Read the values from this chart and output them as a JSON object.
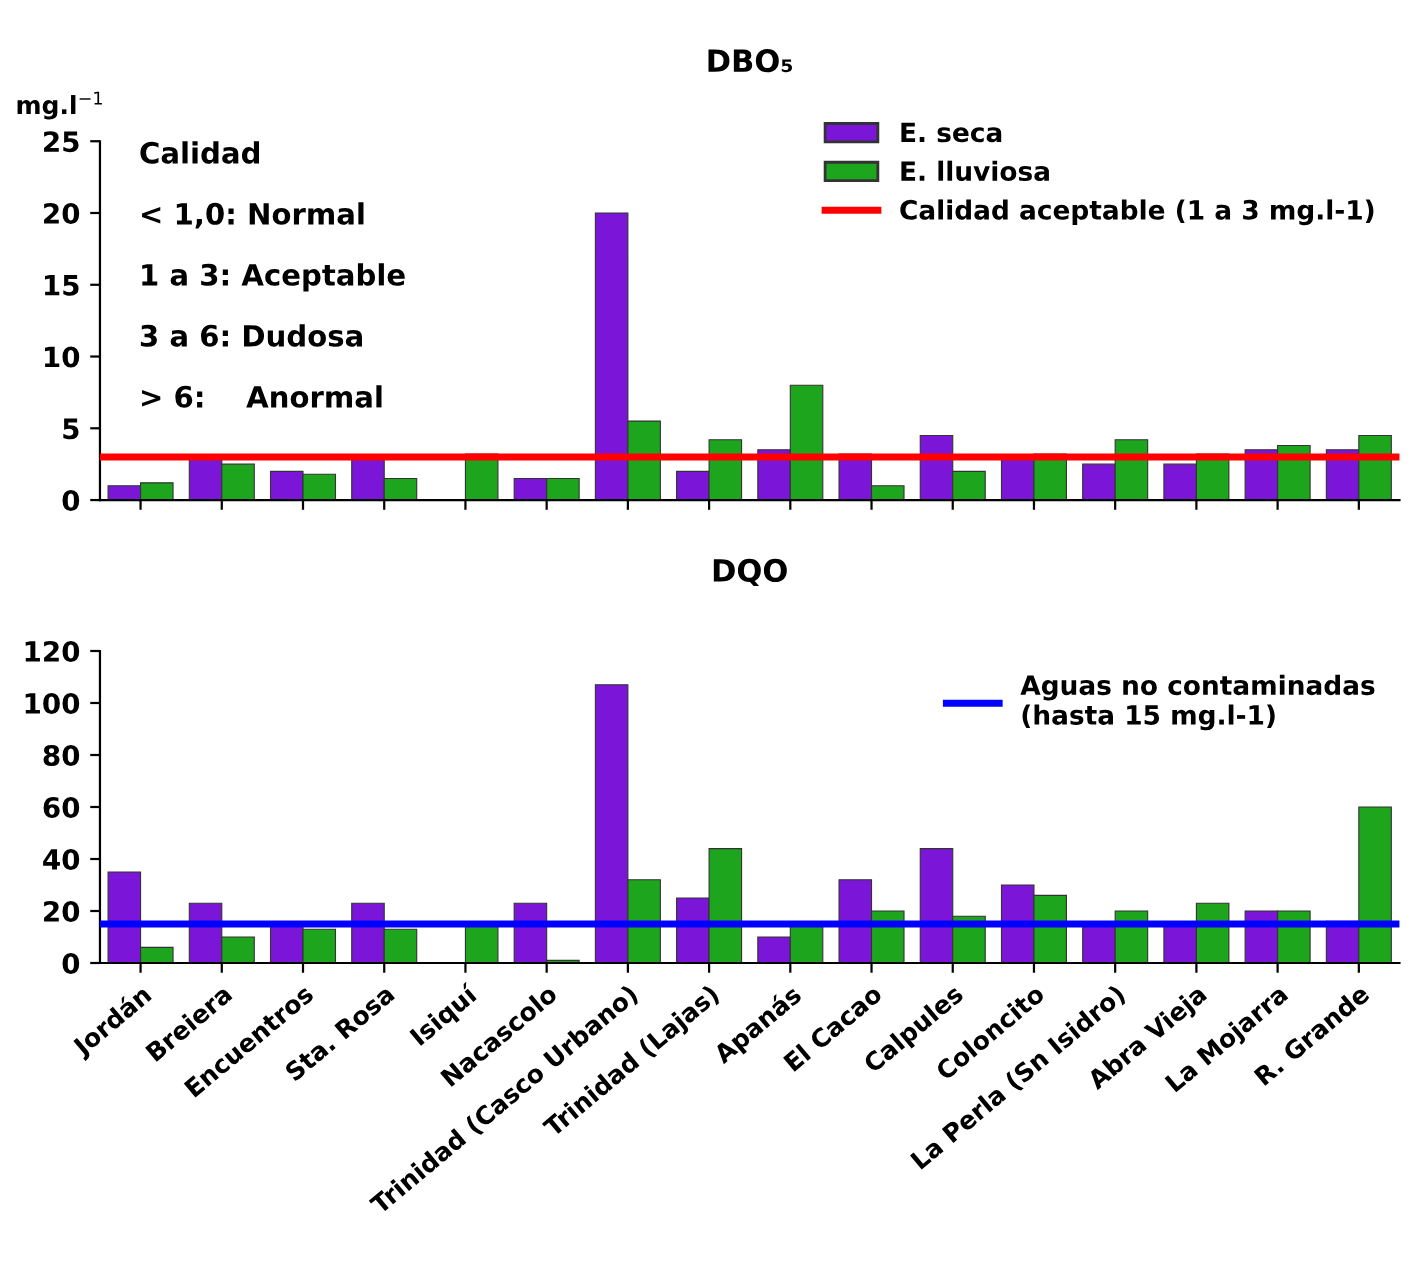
{
  "chart_data": [
    {
      "type": "bar",
      "title": "DBO₅",
      "ylabel": "mg.l$^{−1}$",
      "categories": [
        null,
        null,
        null,
        null,
        null,
        null,
        null,
        null,
        null,
        null,
        null,
        null,
        null,
        null,
        null,
        null
      ],
      "series": [
        {
          "name": "E. seca",
          "color": "#7b16d8",
          "values": [
            1,
            3,
            2,
            3,
            null,
            1.5,
            20,
            2,
            3.5,
            3.2,
            4.5,
            3,
            2.5,
            2.5,
            3.5,
            3.5
          ]
        },
        {
          "name": "E. lluviosa",
          "color": "#1ea51e",
          "values": [
            1.2,
            2.5,
            1.8,
            1.5,
            3.2,
            1.5,
            5.5,
            4.2,
            8,
            1,
            2,
            3.2,
            4.2,
            3.2,
            3.8,
            4.5
          ]
        }
      ],
      "ref_lines": [
        {
          "axis": "y",
          "value": 3,
          "label": "Calidad aceptable (1 a 3 mg.l-1)",
          "color": "#ff0000"
        }
      ],
      "annotations": [
        "Calidad",
        "< 1,0: Normal",
        "1 a 3: Aceptable",
        "3 a 6: Dudosa",
        "> 6:    Anormal"
      ],
      "ylim": [
        0,
        25
      ],
      "yticks": [
        0,
        5,
        10,
        15,
        20,
        25
      ],
      "legend": "top right",
      "tick_labels": "y"
    },
    {
      "type": "bar",
      "title": "DQO",
      "categories": [
        "Jordán",
        "Breiera",
        "Encuentros",
        "Sta. Rosa",
        "Isiquí",
        "Nacascolo",
        "Trinidad (Casco Urbano)",
        "Trinidad (Lajas)",
        "Apanás",
        "El Cacao",
        "Calpules",
        "Coloncito",
        "La Perla (Sn Isidro)",
        "Abra Vieja",
        "La Mojarra",
        "R. Grande"
      ],
      "series": [
        {
          "color": "#7b16d8",
          "values": [
            35,
            23,
            15,
            23,
            null,
            23,
            107,
            25,
            10,
            32,
            44,
            30,
            15,
            15,
            20,
            16
          ]
        },
        {
          "color": "#1ea51e",
          "values": [
            6,
            10,
            13,
            13,
            15,
            1,
            32,
            44,
            15,
            20,
            18,
            26,
            20,
            23,
            20,
            60
          ]
        }
      ],
      "ref_lines": [
        {
          "axis": "y",
          "value": 15,
          "label": "Aguas no contaminadas\n(hasta 15 mg.l-1)",
          "color": "#0000ff"
        }
      ],
      "ylim": [
        0,
        120
      ],
      "yticks": [
        0,
        20,
        40,
        60,
        80,
        100,
        120
      ],
      "legend": "top right"
    }
  ]
}
